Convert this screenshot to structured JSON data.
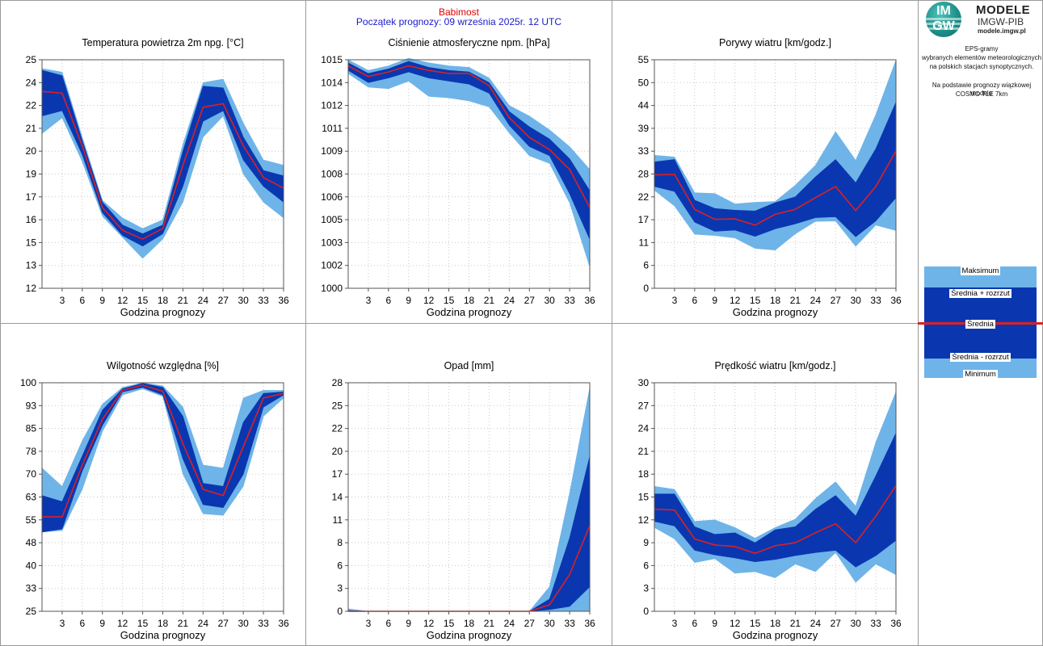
{
  "header": {
    "station": "Babimost",
    "forecast_start": "Początek prognozy: 09 września 2025r. 12 UTC"
  },
  "logo": {
    "badge_top": "IM",
    "badge_bottom": "GW",
    "title": "MODELE",
    "org": "IMGW-PIB",
    "url": "modele.imgw.pl"
  },
  "description": {
    "line1": "EPS-gramy",
    "line2": "wybranych elementów meteorologicznych",
    "line3": "na polskich stacjach  synoptycznych.",
    "line4": "Na podstawie prognozy wiązkowej modelu",
    "line5": "COSMO TLE 7km"
  },
  "legend": {
    "max": "Maksimum",
    "mean_plus": "Średnia + rozrzut",
    "mean": "Średnia",
    "mean_minus": "Średnia - rozrzut",
    "min": "Minimum"
  },
  "colors": {
    "outer_band": "#6eb4e8",
    "inner_band": "#0a37b0",
    "mean_line": "#dd2020",
    "station_text": "#dd0000",
    "start_text": "#1a1acc"
  },
  "chart_data": [
    {
      "type": "area",
      "title": "Temperatura powietrza 2m npg. [°C]",
      "xlabel": "Godzina prognozy",
      "ylabel": "",
      "ylim": [
        12,
        25
      ],
      "yticks": [
        "12",
        "13",
        "15",
        "16",
        "17",
        "19",
        "20",
        "21",
        "22",
        "24",
        "25"
      ],
      "x": [
        0,
        3,
        6,
        9,
        12,
        15,
        18,
        21,
        24,
        27,
        30,
        33,
        36
      ],
      "xticks": [
        3,
        6,
        9,
        12,
        15,
        18,
        21,
        24,
        27,
        30,
        33,
        36
      ],
      "series": [
        {
          "role": "max",
          "values": [
            24.5,
            24.3,
            20.6,
            17.0,
            16.0,
            15.4,
            15.9,
            20.2,
            23.7,
            23.9,
            21.4,
            19.3,
            19.0
          ]
        },
        {
          "role": "mean_plus",
          "values": [
            24.4,
            24.1,
            20.4,
            16.9,
            15.6,
            15.1,
            15.6,
            19.8,
            23.5,
            23.4,
            20.6,
            18.7,
            18.4
          ]
        },
        {
          "role": "mean",
          "values": [
            23.2,
            23.1,
            20.1,
            16.6,
            15.3,
            14.8,
            15.4,
            19.0,
            22.3,
            22.5,
            20.1,
            18.3,
            17.7
          ]
        },
        {
          "role": "mean_minus",
          "values": [
            21.8,
            22.1,
            19.6,
            16.3,
            15.0,
            14.4,
            15.1,
            17.8,
            21.5,
            22.1,
            19.3,
            17.8,
            16.9
          ]
        },
        {
          "role": "min",
          "values": [
            20.8,
            21.7,
            19.2,
            16.1,
            14.9,
            13.7,
            14.8,
            16.9,
            20.6,
            21.8,
            18.5,
            16.9,
            16.0
          ]
        }
      ]
    },
    {
      "type": "area",
      "title": "Ciśnienie atmosferyczne npm. [hPa]",
      "xlabel": "Godzina prognozy",
      "ylabel": "",
      "ylim": [
        1000,
        1015
      ],
      "yticks": [
        "1000",
        "1002",
        "1003",
        "1005",
        "1006",
        "1008",
        "1009",
        "1011",
        "1012",
        "1014",
        "1015"
      ],
      "x": [
        0,
        3,
        6,
        9,
        12,
        15,
        18,
        21,
        24,
        27,
        30,
        33,
        36
      ],
      "xticks": [
        3,
        6,
        9,
        12,
        15,
        18,
        21,
        24,
        27,
        30,
        33,
        36
      ],
      "series": [
        {
          "role": "max",
          "values": [
            1015.0,
            1014.3,
            1014.6,
            1015.1,
            1014.8,
            1014.6,
            1014.5,
            1013.8,
            1012.0,
            1011.3,
            1010.4,
            1009.3,
            1007.8
          ]
        },
        {
          "role": "mean_plus",
          "values": [
            1014.8,
            1014.1,
            1014.4,
            1014.9,
            1014.5,
            1014.3,
            1014.2,
            1013.5,
            1011.6,
            1010.6,
            1009.8,
            1008.5,
            1006.4
          ]
        },
        {
          "role": "mean",
          "values": [
            1014.6,
            1013.9,
            1014.2,
            1014.6,
            1014.3,
            1014.1,
            1014.1,
            1013.3,
            1011.2,
            1009.9,
            1009.1,
            1007.8,
            1005.3
          ]
        },
        {
          "role": "mean_minus",
          "values": [
            1014.3,
            1013.5,
            1013.8,
            1014.2,
            1013.8,
            1013.6,
            1013.4,
            1012.8,
            1010.7,
            1009.3,
            1008.7,
            1006.2,
            1003.2
          ]
        },
        {
          "role": "min",
          "values": [
            1014.1,
            1013.2,
            1013.1,
            1013.6,
            1012.6,
            1012.5,
            1012.3,
            1011.9,
            1010.2,
            1008.7,
            1008.2,
            1005.6,
            1001.4
          ]
        }
      ]
    },
    {
      "type": "area",
      "title": "Porywy wiatru [km/godz.]",
      "xlabel": "Godzina prognozy",
      "ylabel": "",
      "ylim": [
        0,
        55
      ],
      "yticks": [
        "0",
        "6",
        "11",
        "17",
        "22",
        "28",
        "33",
        "39",
        "44",
        "50",
        "55"
      ],
      "x": [
        0,
        3,
        6,
        9,
        12,
        15,
        18,
        21,
        24,
        27,
        30,
        33,
        36
      ],
      "xticks": [
        3,
        6,
        9,
        12,
        15,
        18,
        21,
        24,
        27,
        30,
        33,
        36
      ],
      "series": [
        {
          "role": "max",
          "values": [
            32.0,
            31.6,
            23.0,
            22.8,
            20.3,
            20.7,
            20.9,
            24.8,
            29.6,
            37.7,
            30.8,
            41.8,
            54.9
          ]
        },
        {
          "role": "mean_plus",
          "values": [
            30.4,
            31.0,
            21.2,
            19.2,
            18.8,
            18.6,
            20.6,
            22.0,
            26.8,
            31.0,
            25.4,
            33.6,
            44.8
          ]
        },
        {
          "role": "mean",
          "values": [
            27.3,
            27.4,
            19.0,
            16.6,
            16.7,
            15.2,
            17.8,
            19.0,
            21.8,
            24.5,
            18.7,
            24.5,
            33.0
          ]
        },
        {
          "role": "mean_minus",
          "values": [
            24.5,
            23.3,
            15.9,
            13.7,
            14.0,
            12.5,
            14.3,
            15.5,
            17.0,
            17.2,
            12.4,
            16.2,
            21.8
          ]
        },
        {
          "role": "min",
          "values": [
            23.6,
            19.8,
            13.0,
            12.7,
            12.1,
            9.6,
            9.2,
            13.1,
            16.1,
            16.2,
            10.1,
            15.2,
            13.9
          ]
        }
      ]
    },
    {
      "type": "area",
      "title": "Wilgotność względna [%]",
      "xlabel": "Godzina prognozy",
      "ylabel": "",
      "ylim": [
        25,
        100
      ],
      "yticks": [
        "25",
        "33",
        "40",
        "48",
        "55",
        "63",
        "70",
        "78",
        "85",
        "93",
        "100"
      ],
      "x": [
        0,
        3,
        6,
        9,
        12,
        15,
        18,
        21,
        24,
        27,
        30,
        33,
        36
      ],
      "xticks": [
        3,
        6,
        9,
        12,
        15,
        18,
        21,
        24,
        27,
        30,
        33,
        36
      ],
      "series": [
        {
          "role": "max",
          "values": [
            72,
            66,
            81,
            93,
            98.5,
            100,
            99,
            92,
            73,
            72,
            95,
            97.5,
            97.5
          ]
        },
        {
          "role": "mean_plus",
          "values": [
            63,
            61,
            76,
            91,
            98,
            99.8,
            98.5,
            89,
            67,
            66,
            87,
            96.5,
            97
          ]
        },
        {
          "role": "mean",
          "values": [
            56,
            56,
            73,
            88,
            97.5,
            99.2,
            97.2,
            80,
            65,
            63,
            79,
            95,
            96.5
          ]
        },
        {
          "role": "mean_minus",
          "values": [
            51,
            52,
            71,
            86,
            97,
            98.5,
            96,
            75,
            60,
            59,
            70,
            92,
            96
          ]
        },
        {
          "role": "min",
          "values": [
            51,
            51.5,
            65,
            84,
            96,
            98,
            95.5,
            70,
            57,
            56.5,
            66,
            89,
            95
          ]
        }
      ]
    },
    {
      "type": "area",
      "title": "Opad [mm]",
      "xlabel": "Godzina prognozy",
      "ylabel": "",
      "ylim": [
        0,
        28
      ],
      "yticks": [
        "0",
        "3",
        "6",
        "8",
        "11",
        "14",
        "17",
        "20",
        "22",
        "25",
        "28"
      ],
      "x": [
        0,
        3,
        6,
        9,
        12,
        15,
        18,
        21,
        24,
        27,
        30,
        33,
        36
      ],
      "xticks": [
        3,
        6,
        9,
        12,
        15,
        18,
        21,
        24,
        27,
        30,
        33,
        36
      ],
      "series": [
        {
          "role": "max",
          "values": [
            0.3,
            0,
            0,
            0,
            0,
            0,
            0,
            0,
            0,
            0,
            3.0,
            14.5,
            27.4
          ]
        },
        {
          "role": "mean_plus",
          "values": [
            0.1,
            0,
            0,
            0,
            0,
            0,
            0,
            0,
            0,
            0,
            1.5,
            9.0,
            19.0
          ]
        },
        {
          "role": "mean",
          "values": [
            0.0,
            0,
            0,
            0,
            0,
            0,
            0,
            0,
            0,
            0,
            0.8,
            4.5,
            10.5
          ]
        },
        {
          "role": "mean_minus",
          "values": [
            0.0,
            0,
            0,
            0,
            0,
            0,
            0,
            0,
            0,
            0,
            0.2,
            0.6,
            3.0
          ]
        },
        {
          "role": "min",
          "values": [
            0.0,
            0,
            0,
            0,
            0,
            0,
            0,
            0,
            0,
            0,
            0,
            0,
            0
          ]
        }
      ]
    },
    {
      "type": "area",
      "title": "Prędkość wiatru [km/godz.]",
      "xlabel": "Godzina prognozy",
      "ylabel": "",
      "ylim": [
        0,
        30
      ],
      "yticks": [
        "0",
        "3",
        "6",
        "9",
        "12",
        "15",
        "18",
        "21",
        "24",
        "27",
        "30"
      ],
      "x": [
        0,
        3,
        6,
        9,
        12,
        15,
        18,
        21,
        24,
        27,
        30,
        33,
        36
      ],
      "xticks": [
        3,
        6,
        9,
        12,
        15,
        18,
        21,
        24,
        27,
        30,
        33,
        36
      ],
      "series": [
        {
          "role": "max",
          "values": [
            16.4,
            16.0,
            11.8,
            12.0,
            11.0,
            9.6,
            11.0,
            12.1,
            14.8,
            17.0,
            13.8,
            22.2,
            28.8
          ]
        },
        {
          "role": "mean_plus",
          "values": [
            15.4,
            15.4,
            11.1,
            10.1,
            10.3,
            9.0,
            10.7,
            11.1,
            13.4,
            15.2,
            12.5,
            17.8,
            23.4
          ]
        },
        {
          "role": "mean",
          "values": [
            13.4,
            13.3,
            9.5,
            8.7,
            8.5,
            7.6,
            8.6,
            9.0,
            10.3,
            11.5,
            9.0,
            12.5,
            16.5
          ]
        },
        {
          "role": "mean_minus",
          "values": [
            11.8,
            11.2,
            8.0,
            7.4,
            7.0,
            6.5,
            6.8,
            7.3,
            7.7,
            8.0,
            5.8,
            7.3,
            9.3
          ]
        },
        {
          "role": "min",
          "values": [
            11.0,
            9.5,
            6.4,
            6.9,
            5.0,
            5.2,
            4.4,
            6.2,
            5.2,
            7.7,
            3.8,
            6.2,
            4.8
          ]
        }
      ]
    }
  ]
}
